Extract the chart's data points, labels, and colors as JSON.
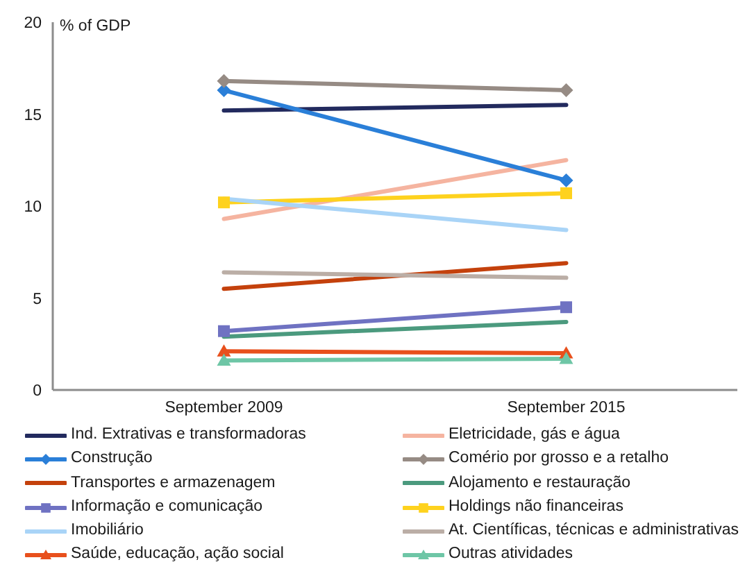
{
  "chart_data": {
    "type": "line",
    "ylabel": "% of GDP",
    "categories": [
      "September 2009",
      "September 2015"
    ],
    "ylim": [
      0,
      20
    ],
    "yticks": [
      0,
      5,
      10,
      15,
      20
    ],
    "legend": "bottom",
    "line_style": "solid",
    "series": [
      {
        "name": "Ind. Extrativas e transformadoras",
        "color": "#222a5e",
        "marker": "none",
        "values": [
          15.2,
          15.5
        ]
      },
      {
        "name": "Eletricidade, gás e água",
        "color": "#f5b4a0",
        "marker": "none",
        "values": [
          9.3,
          12.5
        ]
      },
      {
        "name": "Construção",
        "color": "#2a7fd8",
        "marker": "diamond",
        "values": [
          16.3,
          11.4
        ]
      },
      {
        "name": "Comério por grosso e a retalho",
        "color": "#968b84",
        "marker": "diamond",
        "values": [
          16.8,
          16.3
        ]
      },
      {
        "name": "Transportes e armazenagem",
        "color": "#c4410c",
        "marker": "none",
        "values": [
          5.5,
          6.9
        ]
      },
      {
        "name": "Alojamento e restauração",
        "color": "#4b9a7e",
        "marker": "none",
        "values": [
          2.9,
          3.7
        ]
      },
      {
        "name": "Informação e comunicação",
        "color": "#6f72c2",
        "marker": "square",
        "values": [
          3.2,
          4.5
        ]
      },
      {
        "name": "Holdings não financeiras",
        "color": "#fed21e",
        "marker": "square",
        "values": [
          10.2,
          10.7
        ]
      },
      {
        "name": "Imobiliário",
        "color": "#a9d4f7",
        "marker": "none",
        "values": [
          10.4,
          8.7
        ]
      },
      {
        "name": "At. Científicas, técnicas e administrativas",
        "color": "#bbaea6",
        "marker": "none",
        "values": [
          6.4,
          6.1
        ]
      },
      {
        "name": "Saúde, educação, ação social",
        "color": "#e8501c",
        "marker": "triangle",
        "values": [
          2.1,
          2.0
        ]
      },
      {
        "name": "Outras atividades",
        "color": "#6ec6a6",
        "marker": "triangle",
        "values": [
          1.6,
          1.7
        ]
      }
    ]
  }
}
